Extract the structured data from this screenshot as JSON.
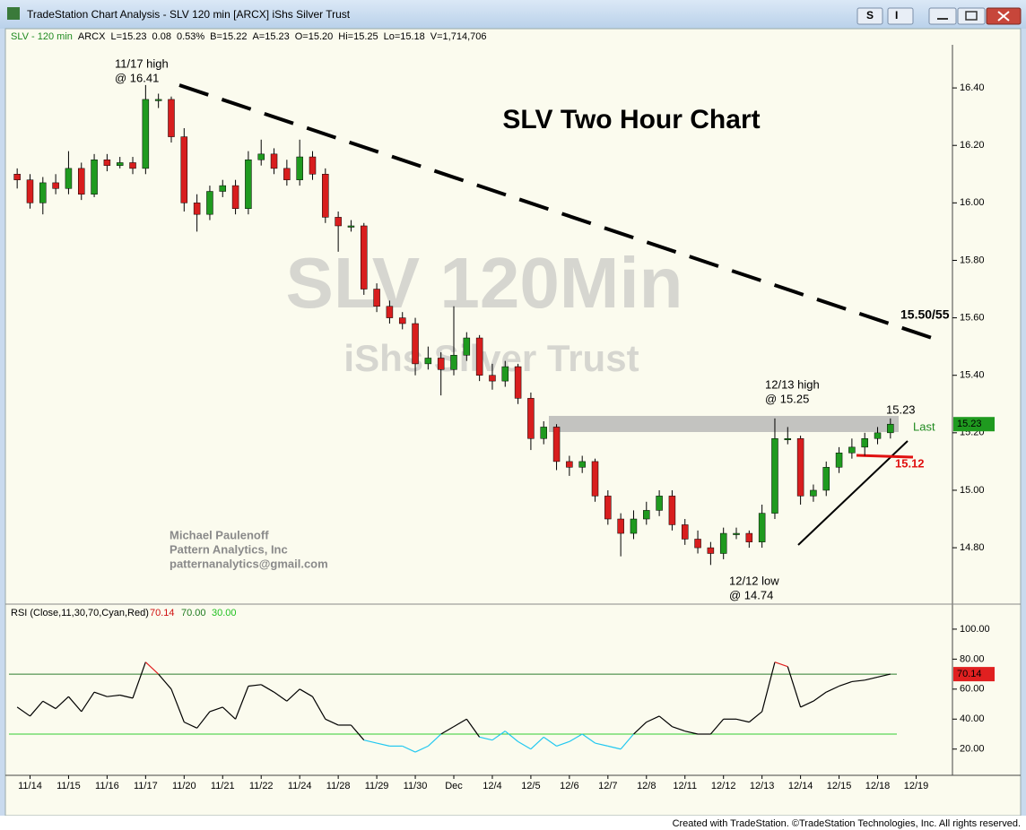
{
  "window": {
    "title": "TradeStation Chart Analysis - SLV 120 min [ARCX] iShs Silver Trust",
    "info": [
      "SLV - 120 min",
      "ARCX",
      "L=15.23",
      "0.08",
      "0.53%",
      "B=15.22",
      "A=15.23",
      "O=15.20",
      "Hi=15.25",
      "Lo=15.18",
      "V=1,714,706"
    ],
    "footer": "Created with TradeStation. ©TradeStation Technologies, Inc. All rights reserved.",
    "buttons": [
      "S",
      "I"
    ]
  },
  "chart_data": {
    "type": "candlestick",
    "title": "SLV Two Hour Chart",
    "watermark": "SLV 120Min",
    "watermark_sub": "iShs Silver Trust",
    "author": [
      "Michael Paulenoff",
      "Pattern Analytics, Inc",
      "patternanalytics@gmail.com"
    ],
    "annotations": {
      "high_1117": [
        "11/17 high",
        "@ 16.41"
      ],
      "high_1213": [
        "12/13 high",
        "@ 15.25"
      ],
      "low_1212": [
        "12/12 low",
        "@ 14.74"
      ],
      "target": "15.50/55",
      "last_value": "15.23",
      "last": "Last",
      "support": "15.12"
    },
    "last_label": "15.23",
    "categories": [
      "11/14",
      "11/15",
      "11/16",
      "11/17",
      "11/20",
      "11/21",
      "11/22",
      "11/24",
      "11/28",
      "11/29",
      "11/30",
      "Dec",
      "12/4",
      "12/5",
      "12/6",
      "12/7",
      "12/8",
      "12/11",
      "12/12",
      "12/13",
      "12/14",
      "12/15",
      "12/18",
      "12/19"
    ],
    "open": [
      16.1,
      16.08,
      16.0,
      16.07,
      16.05,
      16.12,
      16.03,
      16.15,
      16.13,
      16.14,
      16.12,
      16.36,
      16.36,
      16.23,
      16.0,
      15.96,
      16.04,
      16.06,
      15.98,
      16.15,
      16.17,
      16.12,
      16.08,
      16.16,
      16.1,
      15.95,
      15.92,
      15.92,
      15.7,
      15.64,
      15.6,
      15.58,
      15.44,
      15.46,
      15.42,
      15.47,
      15.53,
      15.4,
      15.38,
      15.43,
      15.32,
      15.18,
      15.22,
      15.1,
      15.08,
      15.1,
      14.98,
      14.9,
      14.85,
      14.9,
      14.93,
      14.98,
      14.88,
      14.83,
      14.8,
      14.78,
      14.85,
      14.85,
      14.82,
      14.92,
      15.18,
      15.18,
      14.98,
      15.0,
      15.08,
      15.13,
      15.15,
      15.18,
      15.2
    ],
    "high": [
      16.12,
      16.1,
      16.09,
      16.1,
      16.18,
      16.14,
      16.17,
      16.17,
      16.16,
      16.16,
      16.41,
      16.38,
      16.37,
      16.26,
      16.03,
      16.06,
      16.08,
      16.08,
      16.18,
      16.22,
      16.19,
      16.15,
      16.22,
      16.18,
      16.12,
      15.97,
      15.94,
      15.93,
      15.72,
      15.66,
      15.62,
      15.6,
      15.5,
      15.48,
      15.64,
      15.55,
      15.54,
      15.44,
      15.45,
      15.44,
      15.34,
      15.24,
      15.23,
      15.12,
      15.12,
      15.11,
      15.0,
      14.92,
      14.93,
      14.96,
      15.0,
      15.0,
      14.9,
      14.86,
      14.82,
      14.87,
      14.87,
      14.86,
      14.95,
      15.25,
      15.22,
      15.19,
      15.02,
      15.1,
      15.15,
      15.18,
      15.2,
      15.22,
      15.25
    ],
    "low": [
      16.05,
      15.98,
      15.96,
      16.03,
      16.03,
      16.01,
      16.02,
      16.11,
      16.12,
      16.1,
      16.1,
      16.33,
      16.21,
      15.97,
      15.9,
      15.94,
      16.02,
      15.96,
      15.96,
      16.13,
      16.1,
      16.06,
      16.06,
      16.08,
      15.93,
      15.83,
      15.9,
      15.68,
      15.62,
      15.58,
      15.56,
      15.4,
      15.42,
      15.33,
      15.4,
      15.45,
      15.38,
      15.35,
      15.36,
      15.3,
      15.14,
      15.16,
      15.07,
      15.05,
      15.06,
      14.96,
      14.88,
      14.77,
      14.83,
      14.88,
      14.91,
      14.86,
      14.81,
      14.78,
      14.74,
      14.76,
      14.83,
      14.8,
      14.8,
      14.9,
      15.16,
      14.95,
      14.96,
      14.98,
      15.06,
      15.11,
      15.12,
      15.16,
      15.18
    ],
    "close": [
      16.08,
      16.0,
      16.07,
      16.05,
      16.12,
      16.03,
      16.15,
      16.13,
      16.14,
      16.12,
      16.36,
      16.36,
      16.23,
      16.0,
      15.96,
      16.04,
      16.06,
      15.98,
      16.15,
      16.17,
      16.12,
      16.08,
      16.16,
      16.1,
      15.95,
      15.92,
      15.92,
      15.7,
      15.64,
      15.6,
      15.58,
      15.44,
      15.46,
      15.42,
      15.47,
      15.53,
      15.4,
      15.38,
      15.43,
      15.32,
      15.18,
      15.22,
      15.1,
      15.08,
      15.1,
      14.98,
      14.9,
      14.85,
      14.9,
      14.93,
      14.98,
      14.88,
      14.83,
      14.8,
      14.78,
      14.85,
      14.85,
      14.82,
      14.92,
      15.18,
      15.18,
      14.98,
      15.0,
      15.08,
      15.13,
      15.15,
      15.18,
      15.2,
      15.23
    ],
    "up_color": "#1f9a1f",
    "down_color": "#d81e1e",
    "ylim": [
      14.61,
      16.55
    ],
    "yticks": [
      {
        "value": 14.8,
        "label": "14.80"
      },
      {
        "value": 15.0,
        "label": "15.00"
      },
      {
        "value": 15.2,
        "label": "15.20"
      },
      {
        "value": 15.4,
        "label": "15.40"
      },
      {
        "value": 15.6,
        "label": "15.60"
      },
      {
        "value": 15.8,
        "label": "15.80"
      },
      {
        "value": 16.0,
        "label": "16.00"
      },
      {
        "value": 16.2,
        "label": "16.20"
      },
      {
        "value": 16.4,
        "label": "16.40"
      }
    ],
    "rsi": {
      "label": "RSI (Close,11,30,70,Cyan,Red)",
      "current_label": "70.14",
      "overbought": {
        "value": 70,
        "label": "70.00"
      },
      "oversold": {
        "value": 30,
        "label": "30.00"
      },
      "values": [
        48,
        42,
        52,
        47,
        55,
        45,
        58,
        55,
        56,
        54,
        78,
        70,
        60,
        38,
        34,
        45,
        48,
        40,
        62,
        63,
        58,
        52,
        60,
        55,
        40,
        36,
        36,
        26,
        24,
        22,
        22,
        18,
        22,
        30,
        35,
        40,
        28,
        26,
        32,
        25,
        20,
        28,
        22,
        25,
        30,
        24,
        22,
        20,
        30,
        38,
        42,
        35,
        32,
        30,
        30,
        40,
        40,
        38,
        45,
        78,
        75,
        48,
        52,
        58,
        62,
        65,
        66,
        68,
        70
      ],
      "color": "#000000",
      "low_color": "#22c8f0",
      "high_color": "#e02020",
      "ylim": [
        2.5,
        115.5
      ],
      "yticks": [
        {
          "value": 20,
          "label": "20.00"
        },
        {
          "value": 40,
          "label": "40.00"
        },
        {
          "value": 60,
          "label": "60.00"
        },
        {
          "value": 80,
          "label": "80.00"
        },
        {
          "value": 100,
          "label": "100.00"
        }
      ]
    }
  }
}
